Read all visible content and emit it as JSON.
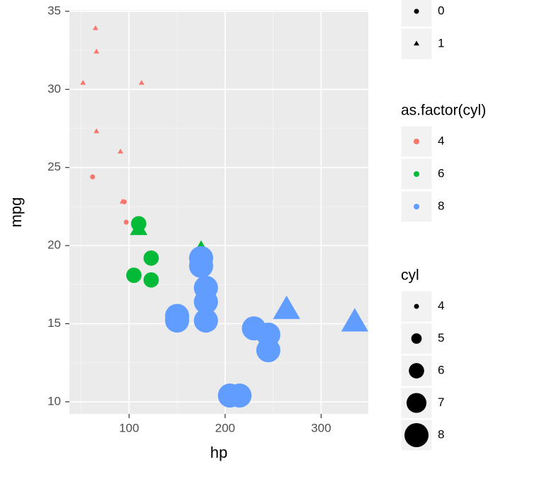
{
  "chart_data": {
    "type": "scatter",
    "x_label": "hp",
    "y_label": "mpg",
    "xlim": [
      37.85,
      349.15
    ],
    "ylim": [
      9.225,
      35.075
    ],
    "xticks": [
      100,
      200,
      300
    ],
    "yticks": [
      10,
      15,
      20,
      25,
      30,
      35
    ],
    "xminor": [
      50,
      150,
      250
    ],
    "yminor": [
      12.5,
      17.5,
      22.5,
      27.5,
      32.5
    ],
    "grid": true,
    "series": [
      {
        "name": "4",
        "color": "#F8766D",
        "x": [
          93,
          62,
          95,
          66,
          52,
          65,
          97,
          66,
          91,
          113,
          109
        ],
        "values": [
          22.8,
          24.4,
          22.8,
          32.4,
          30.4,
          33.9,
          21.5,
          27.3,
          26.0,
          30.4,
          21.4
        ],
        "am": [
          1,
          0,
          0,
          1,
          1,
          1,
          0,
          1,
          1,
          1,
          1
        ],
        "size": [
          4,
          4,
          4,
          4,
          4,
          4,
          4,
          4,
          4,
          4,
          4
        ]
      },
      {
        "name": "6",
        "color": "#00BA38",
        "x": [
          110,
          110,
          110,
          105,
          123,
          123,
          175
        ],
        "values": [
          21.0,
          21.0,
          21.4,
          18.1,
          19.2,
          17.8,
          19.7
        ],
        "am": [
          1,
          1,
          0,
          0,
          0,
          0,
          1
        ],
        "size": [
          6,
          6,
          6,
          6,
          6,
          6,
          6
        ]
      },
      {
        "name": "8",
        "color": "#619CFF",
        "x": [
          175,
          245,
          180,
          180,
          180,
          205,
          215,
          230,
          150,
          150,
          245,
          175,
          264,
          335
        ],
        "values": [
          18.7,
          14.3,
          16.4,
          17.3,
          15.2,
          10.4,
          10.4,
          14.7,
          15.5,
          15.2,
          13.3,
          19.2,
          15.8,
          15.0
        ],
        "am": [
          0,
          0,
          0,
          0,
          0,
          0,
          0,
          0,
          0,
          0,
          0,
          0,
          1,
          1
        ],
        "size": [
          8,
          8,
          8,
          8,
          8,
          8,
          8,
          8,
          8,
          8,
          8,
          8,
          8,
          8
        ]
      }
    ],
    "shape_legend": {
      "labels": [
        0,
        1
      ],
      "shapes": [
        "circle",
        "triangle"
      ]
    },
    "color_legend": {
      "title": "as.factor(cyl)"
    },
    "size_legend": {
      "title": "cyl",
      "values": [
        4,
        5,
        6,
        7,
        8
      ]
    }
  }
}
